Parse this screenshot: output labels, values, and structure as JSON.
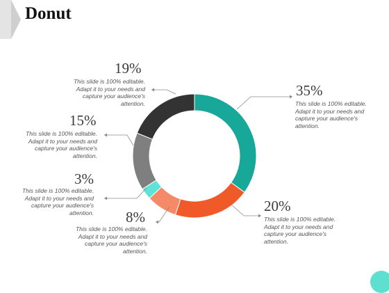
{
  "slide": {
    "title": "Donut"
  },
  "chart_data": {
    "type": "pie",
    "style": "donut",
    "categories": [
      "35%",
      "20%",
      "8%",
      "3%",
      "15%",
      "19%"
    ],
    "values": [
      35,
      20,
      8,
      3,
      15,
      19
    ],
    "colors": [
      "#17a89a",
      "#f05a28",
      "#f48a68",
      "#5ee3d6",
      "#7f7f7f",
      "#333333"
    ],
    "labels": [
      {
        "value": "35%",
        "text": "This slide is 100% editable. Adapt it to your needs and capture your audience's attention."
      },
      {
        "value": "20%",
        "text": "This slide is 100% editable. Adapt it to your needs and capture your audience's attention."
      },
      {
        "value": "8%",
        "text": "This slide is 100% editable. Adapt it to your needs and capture your audience's attention."
      },
      {
        "value": "3%",
        "text": "This slide is 100% editable. Adapt it to your needs and capture your audience's attention."
      },
      {
        "value": "15%",
        "text": "This slide is 100% editable. Adapt it to your needs and capture your audience's attention."
      },
      {
        "value": "19%",
        "text": "This slide is 100% editable. Adapt it to your needs and capture your audience's attention."
      }
    ]
  },
  "theme": {
    "accent": "#5fdfd0",
    "corner": "#dcdcdc"
  }
}
